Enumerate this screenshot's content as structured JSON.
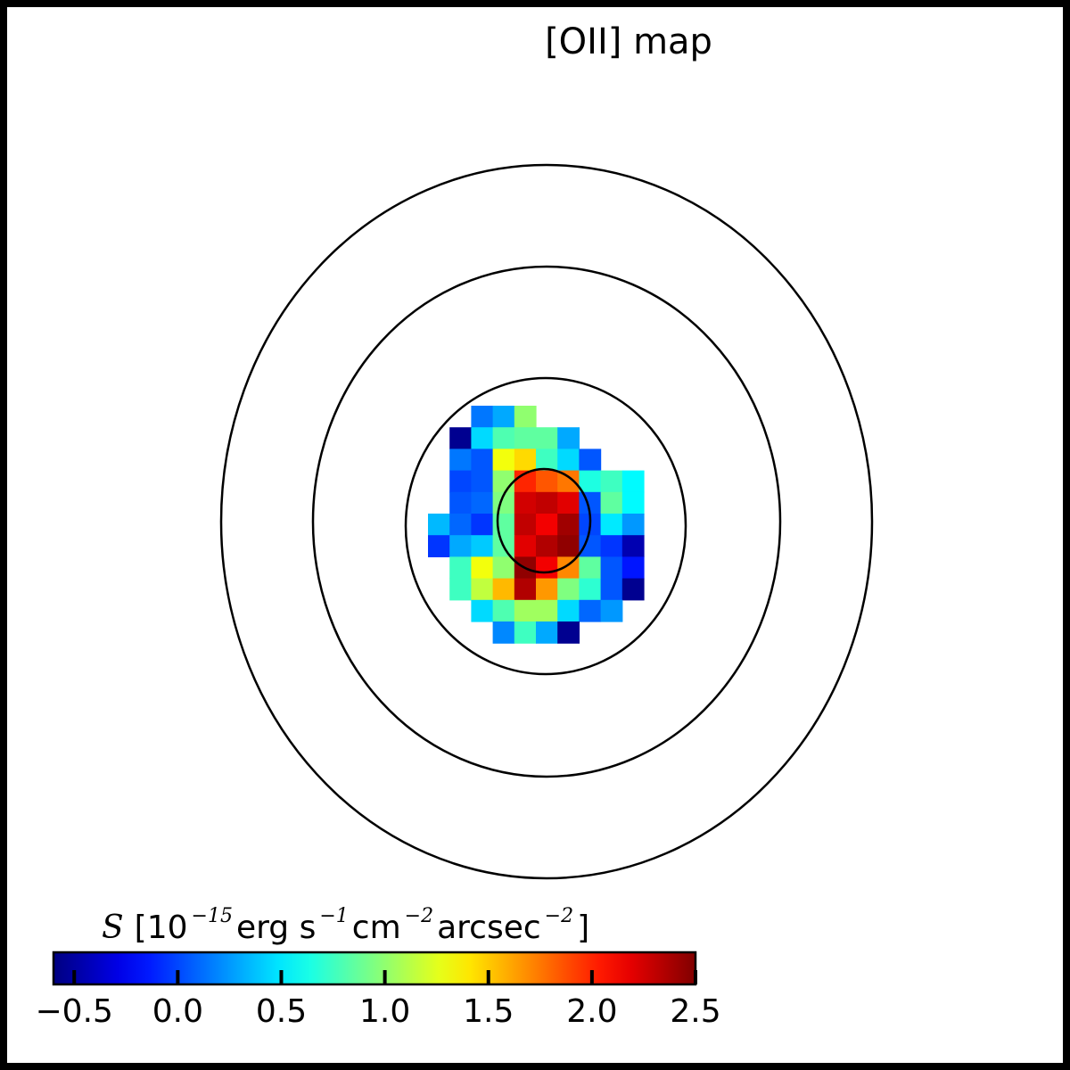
{
  "chart_data": {
    "type": "heatmap",
    "title": "[OII] map",
    "colorbar": {
      "symbol": "S",
      "label_parts": {
        "open": "[10",
        "exp1": "−15",
        "erg": " erg s",
        "exp2": "−1",
        "cm": " cm",
        "exp3": "−2",
        "arcsec": " arcsec",
        "exp4": "−2",
        "close": " ]"
      },
      "vmin": -0.6,
      "vmax": 2.5,
      "colormap": "jet",
      "ticks": [
        -0.5,
        0.0,
        0.5,
        1.0,
        1.5,
        2.0,
        2.5
      ],
      "tick_labels": [
        "−0.5",
        "0.0",
        "0.5",
        "1.0",
        "1.5",
        "2.0",
        "2.5"
      ]
    },
    "grid": {
      "columns": 10,
      "rows": 11,
      "values": [
        [
          null,
          null,
          0.15,
          0.3,
          1.0,
          null,
          null,
          null,
          null,
          null
        ],
        [
          null,
          -0.55,
          0.45,
          0.8,
          0.85,
          0.85,
          0.3,
          null,
          null,
          null
        ],
        [
          null,
          0.15,
          0.05,
          1.3,
          1.45,
          0.75,
          0.45,
          0.05,
          null,
          null
        ],
        [
          null,
          0.0,
          0.05,
          1.0,
          2.0,
          1.85,
          1.75,
          0.65,
          0.75,
          0.55
        ],
        [
          null,
          0.05,
          0.1,
          0.95,
          2.25,
          2.3,
          2.2,
          0.05,
          0.85,
          0.55
        ],
        [
          0.35,
          0.1,
          -0.05,
          0.85,
          2.3,
          2.15,
          2.4,
          0.0,
          0.5,
          0.25
        ],
        [
          -0.05,
          0.3,
          0.4,
          0.85,
          2.2,
          2.35,
          2.45,
          0.05,
          -0.05,
          -0.45
        ],
        [
          null,
          0.75,
          1.3,
          1.0,
          2.45,
          2.15,
          1.7,
          0.85,
          0.05,
          -0.15
        ],
        [
          null,
          0.75,
          1.15,
          1.55,
          2.35,
          1.65,
          0.95,
          0.7,
          0.05,
          -0.55
        ],
        [
          null,
          null,
          0.45,
          0.8,
          1.05,
          1.05,
          0.45,
          0.1,
          0.25,
          null
        ],
        [
          null,
          null,
          null,
          0.2,
          0.75,
          0.3,
          -0.55,
          null,
          null,
          null
        ]
      ]
    },
    "contours": 4
  }
}
